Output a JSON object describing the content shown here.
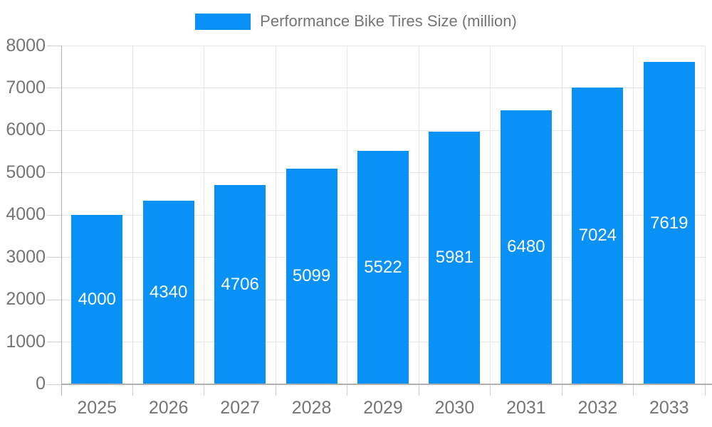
{
  "chart_data": {
    "type": "bar",
    "title": "Performance Bike Tires Size (million)",
    "categories": [
      "2025",
      "2026",
      "2027",
      "2028",
      "2029",
      "2030",
      "2031",
      "2032",
      "2033"
    ],
    "series": [
      {
        "name": "Performance Bike Tires Size (million)",
        "values": [
          4000,
          4340,
          4706,
          5099,
          5522,
          5981,
          6480,
          7024,
          7619
        ]
      }
    ],
    "value_labels": [
      "4000",
      "4340",
      "4706",
      "5099",
      "5522",
      "5981",
      "6480",
      "7024",
      "7619"
    ],
    "xlabel": "",
    "ylabel": "",
    "ylim": [
      0,
      8000
    ],
    "y_ticks": [
      0,
      1000,
      2000,
      3000,
      4000,
      5000,
      6000,
      7000,
      8000
    ],
    "y_tick_labels": [
      "0",
      "1000",
      "2000",
      "3000",
      "4000",
      "5000",
      "6000",
      "7000",
      "8000"
    ],
    "grid": true,
    "legend_position": "top-center",
    "colors": {
      "bar": "#0991f5",
      "value_label": "#ffffff",
      "tick_label": "#757575",
      "legend_text": "#757575",
      "gridline": "#e7e7e7",
      "tick": "#cfcfcf",
      "axis_line": "#b0b0b0",
      "background": "#ffffff"
    }
  }
}
